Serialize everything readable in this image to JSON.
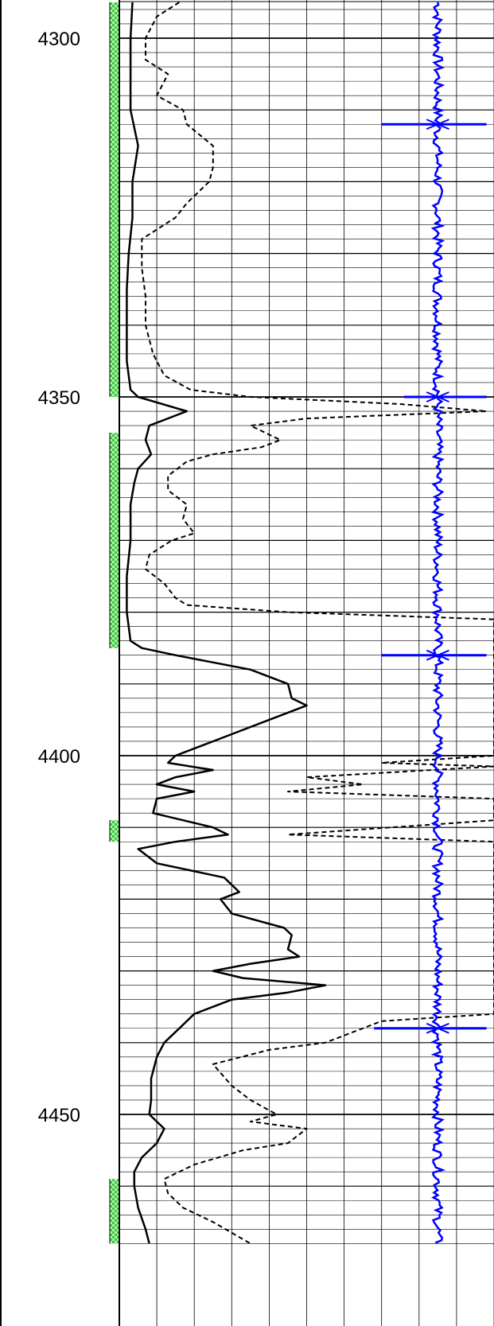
{
  "chart_data": {
    "type": "line",
    "title": "",
    "y_axis": {
      "label": "",
      "min": 4295,
      "max": 4468,
      "inverted": true,
      "tick_labels": [
        "4300",
        "4350",
        "4400",
        "4450"
      ],
      "ticks": [
        4300,
        4350,
        4400,
        4450
      ]
    },
    "x_axis": {
      "label": "",
      "min": 0,
      "max": 10,
      "major_gridlines": 10
    },
    "grid": true,
    "colors": {
      "solid_curve": "#000000",
      "dashed_curve": "#000000",
      "blue_trace": "#0000ff",
      "fill_green": "#33cc33",
      "grid": "#000000",
      "background": "#ffffff"
    },
    "series": [
      {
        "style": "solid",
        "points": [
          [
            0.35,
            4295
          ],
          [
            0.3,
            4300
          ],
          [
            0.3,
            4310
          ],
          [
            0.5,
            4315
          ],
          [
            0.35,
            4320
          ],
          [
            0.35,
            4325
          ],
          [
            0.25,
            4330
          ],
          [
            0.2,
            4335
          ],
          [
            0.2,
            4340
          ],
          [
            0.2,
            4345
          ],
          [
            0.3,
            4349
          ],
          [
            0.5,
            4350
          ],
          [
            1.8,
            4352
          ],
          [
            0.8,
            4354
          ],
          [
            0.7,
            4356
          ],
          [
            0.85,
            4358
          ],
          [
            0.5,
            4360
          ],
          [
            0.4,
            4362
          ],
          [
            0.3,
            4365
          ],
          [
            0.3,
            4370
          ],
          [
            0.2,
            4375
          ],
          [
            0.2,
            4380
          ],
          [
            0.3,
            4384
          ],
          [
            0.6,
            4385
          ],
          [
            1.5,
            4386
          ],
          [
            3.5,
            4388
          ],
          [
            4.5,
            4390
          ],
          [
            4.6,
            4392
          ],
          [
            5,
            4393
          ],
          [
            4,
            4395
          ],
          [
            2.5,
            4398
          ],
          [
            1.5,
            4400
          ],
          [
            1.3,
            4401
          ],
          [
            2.5,
            4402
          ],
          [
            1.5,
            4403
          ],
          [
            1.0,
            4404
          ],
          [
            2.0,
            4405
          ],
          [
            1.0,
            4406
          ],
          [
            0.9,
            4408
          ],
          [
            2.5,
            4410
          ],
          [
            2.9,
            4411
          ],
          [
            1.5,
            4412
          ],
          [
            0.5,
            4413
          ],
          [
            1.0,
            4415
          ],
          [
            2.8,
            4417
          ],
          [
            3.2,
            4419
          ],
          [
            2.7,
            4420
          ],
          [
            3.0,
            4422
          ],
          [
            4.4,
            4424
          ],
          [
            4.6,
            4425
          ],
          [
            4.5,
            4427
          ],
          [
            4.8,
            4428
          ],
          [
            3.5,
            4429
          ],
          [
            2.5,
            4430
          ],
          [
            3.3,
            4431
          ],
          [
            5.5,
            4432
          ],
          [
            4.5,
            4433
          ],
          [
            3.0,
            4434
          ],
          [
            2.5,
            4435
          ],
          [
            2.0,
            4436
          ],
          [
            1.6,
            4438
          ],
          [
            1.2,
            4440
          ],
          [
            1.0,
            4442
          ],
          [
            0.85,
            4445
          ],
          [
            0.85,
            4448
          ],
          [
            0.8,
            4450
          ],
          [
            1.2,
            4452
          ],
          [
            1.0,
            4454
          ],
          [
            0.6,
            4456
          ],
          [
            0.4,
            4458
          ],
          [
            0.4,
            4460
          ],
          [
            0.5,
            4463
          ],
          [
            0.7,
            4466
          ],
          [
            0.8,
            4468
          ]
        ]
      },
      {
        "style": "dashed",
        "points": [
          [
            1.6,
            4295
          ],
          [
            1.0,
            4297
          ],
          [
            0.7,
            4300
          ],
          [
            0.7,
            4303
          ],
          [
            1.3,
            4305
          ],
          [
            1.0,
            4308
          ],
          [
            1.7,
            4310
          ],
          [
            1.8,
            4312
          ],
          [
            2.5,
            4315
          ],
          [
            2.5,
            4318
          ],
          [
            2.4,
            4320
          ],
          [
            1.8,
            4323
          ],
          [
            1.5,
            4325
          ],
          [
            0.6,
            4328
          ],
          [
            0.6,
            4332
          ],
          [
            0.7,
            4336
          ],
          [
            0.7,
            4340
          ],
          [
            0.9,
            4344
          ],
          [
            1.2,
            4347
          ],
          [
            1.9,
            4349
          ],
          [
            3.5,
            4350
          ],
          [
            7.5,
            4351
          ],
          [
            9.8,
            4352
          ],
          [
            5.0,
            4353
          ],
          [
            3.5,
            4354
          ],
          [
            4.3,
            4356
          ],
          [
            3.8,
            4357
          ],
          [
            2.5,
            4358
          ],
          [
            1.8,
            4359
          ],
          [
            1.3,
            4361
          ],
          [
            1.3,
            4363
          ],
          [
            1.8,
            4365
          ],
          [
            1.7,
            4367
          ],
          [
            2.0,
            4369
          ],
          [
            1.4,
            4370
          ],
          [
            0.8,
            4372
          ],
          [
            0.7,
            4374
          ],
          [
            1.2,
            4376
          ],
          [
            1.5,
            4378
          ],
          [
            1.8,
            4379
          ],
          [
            4.5,
            4380
          ],
          [
            10,
            4381
          ],
          [
            10,
            4400
          ],
          [
            7.0,
            4401
          ],
          [
            10,
            4401.5
          ],
          [
            5.0,
            4403
          ],
          [
            6.5,
            4404
          ],
          [
            4.5,
            4405
          ],
          [
            10,
            4406
          ],
          [
            10,
            4409
          ],
          [
            4.5,
            4411
          ],
          [
            10,
            4412
          ],
          [
            10,
            4436
          ],
          [
            7.0,
            4437
          ],
          [
            5.5,
            4440
          ],
          [
            4.0,
            4441
          ],
          [
            2.5,
            4443
          ],
          [
            3.0,
            4446
          ],
          [
            3.5,
            4448
          ],
          [
            4.2,
            4450
          ],
          [
            3.5,
            4451
          ],
          [
            5.0,
            4452
          ],
          [
            4.5,
            4454
          ],
          [
            3.3,
            4455
          ],
          [
            2.0,
            4457
          ],
          [
            1.2,
            4459
          ],
          [
            1.3,
            4461
          ],
          [
            1.7,
            4463
          ],
          [
            2.5,
            4465
          ],
          [
            3.5,
            4468
          ]
        ]
      },
      {
        "style": "solid",
        "color": "blue",
        "baseline": 8.5,
        "spikes": [
          {
            "depth": 4312,
            "left": 7.0,
            "right": 9.8
          },
          {
            "depth": 4350,
            "left": 7.6,
            "right": 9.8
          },
          {
            "depth": 4386,
            "left": 7.0,
            "right": 9.8
          },
          {
            "depth": 4438,
            "left": 6.8,
            "right": 9.8
          }
        ]
      }
    ],
    "fill_track": {
      "intervals": [
        [
          4295,
          4350
        ],
        [
          4355,
          4385
        ],
        [
          4409,
          4412
        ],
        [
          4459,
          4468
        ]
      ],
      "color": "green",
      "pattern": "checker"
    }
  }
}
